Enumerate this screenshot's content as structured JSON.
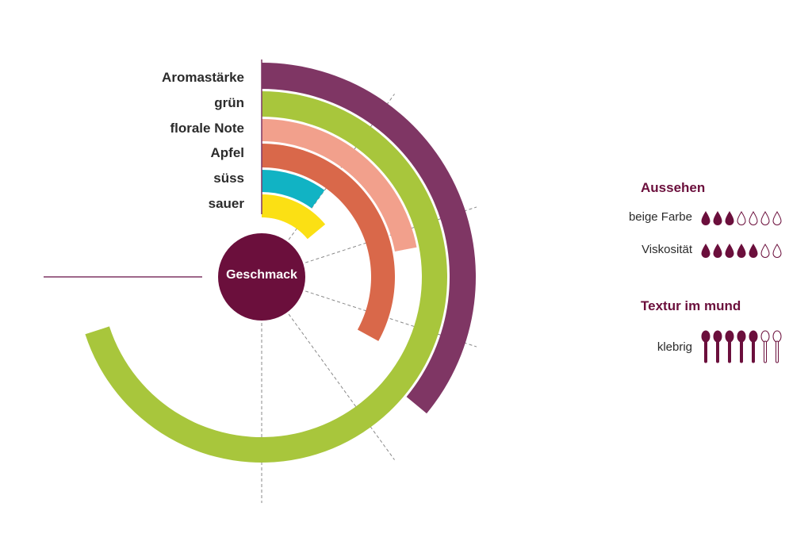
{
  "chart_data": {
    "type": "radial-bar",
    "center_label": "Geschmack",
    "scale_max": 10,
    "series": [
      {
        "name": "Aromastärke",
        "value": 3.6,
        "color": "#7f3664"
      },
      {
        "name": "grün",
        "value": 7.0,
        "color": "#a8c63c"
      },
      {
        "name": "florale Note",
        "value": 2.2,
        "color": "#f2a08c"
      },
      {
        "name": "Apfel",
        "value": 3.3,
        "color": "#d9684a"
      },
      {
        "name": "süss",
        "value": 1.0,
        "color": "#11b3c4"
      },
      {
        "name": "sauer",
        "value": 1.4,
        "color": "#fbe014"
      }
    ],
    "ticks": [
      1,
      2,
      3,
      4,
      5
    ]
  },
  "center_color": "#6b0f3c",
  "aussehen": {
    "title": "Aussehen",
    "items": [
      {
        "label": "beige Farbe",
        "filled": 3,
        "total": 7
      },
      {
        "label": "Viskosität",
        "filled": 5,
        "total": 7
      }
    ]
  },
  "textur": {
    "title": "Textur im mund",
    "items": [
      {
        "label": "klebrig",
        "filled": 5,
        "total": 7
      }
    ]
  },
  "icon_color": "#6b0f3c"
}
